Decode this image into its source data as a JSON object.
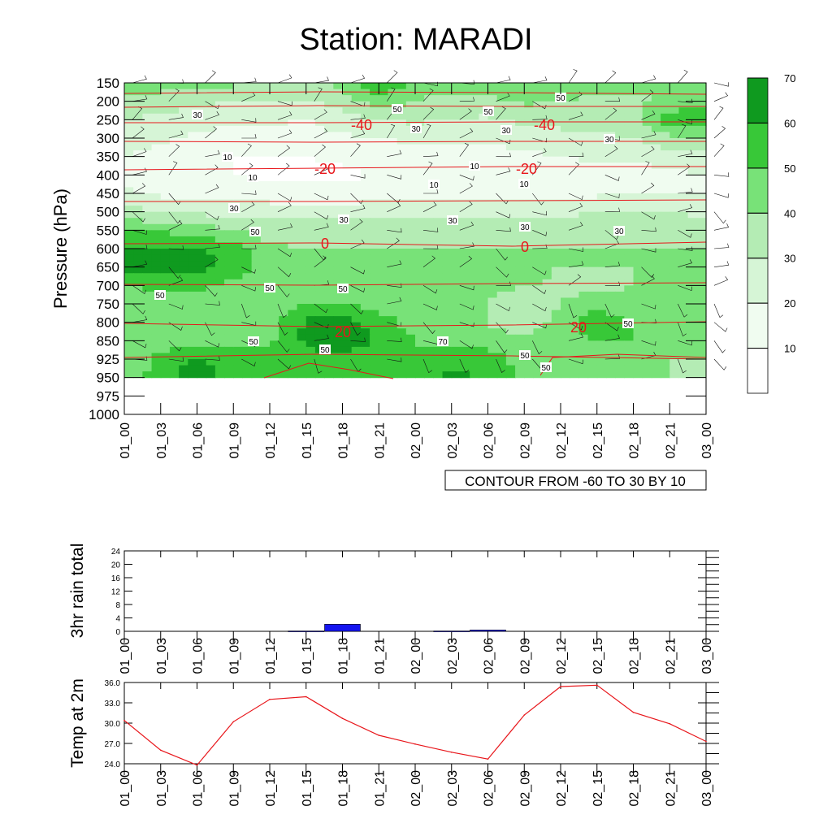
{
  "title": "Station: MARADI",
  "colors": {
    "levels": [
      "#ffffff",
      "#f0fcf0",
      "#d6f5d6",
      "#b4ecb4",
      "#78e278",
      "#38c838",
      "#0f9a1f"
    ],
    "contour_line": "#e8161b",
    "rain_bar": "#1515f0",
    "temp_line": "#e8161b"
  },
  "chart_data": [
    {
      "type": "heatmap",
      "name": "cross-section",
      "ylabel": "Pressure (hPa)",
      "pressure_levels": [
        150,
        200,
        250,
        300,
        350,
        400,
        450,
        500,
        550,
        600,
        650,
        700,
        750,
        800,
        850,
        925,
        950,
        975,
        1000
      ],
      "x_ticks": [
        "01_00",
        "01_03",
        "01_06",
        "01_09",
        "01_12",
        "01_15",
        "01_18",
        "01_21",
        "02_00",
        "02_03",
        "02_06",
        "02_09",
        "02_12",
        "02_15",
        "02_18",
        "02_21",
        "03_00"
      ],
      "color_bar": {
        "boundaries": [
          10,
          20,
          30,
          40,
          50,
          60,
          70
        ],
        "labels": [
          "10",
          "20",
          "30",
          "40",
          "50",
          "60",
          "70"
        ]
      },
      "shaded_field_rows": [
        {
          "p": 150,
          "v": [
            45,
            45,
            42,
            42,
            40,
            40,
            42,
            60,
            50,
            45,
            42,
            45,
            45,
            42,
            42,
            42,
            40
          ]
        },
        {
          "p": 200,
          "v": [
            38,
            35,
            32,
            30,
            28,
            28,
            35,
            45,
            40,
            35,
            38,
            42,
            40,
            38,
            38,
            42,
            45
          ]
        },
        {
          "p": 250,
          "v": [
            30,
            28,
            25,
            22,
            22,
            20,
            25,
            30,
            32,
            30,
            28,
            32,
            35,
            35,
            38,
            55,
            60
          ]
        },
        {
          "p": 300,
          "v": [
            25,
            22,
            18,
            15,
            15,
            15,
            18,
            20,
            22,
            22,
            22,
            25,
            25,
            28,
            30,
            38,
            40
          ]
        },
        {
          "p": 350,
          "v": [
            20,
            15,
            12,
            10,
            10,
            10,
            12,
            15,
            15,
            15,
            15,
            18,
            20,
            22,
            22,
            25,
            28
          ]
        },
        {
          "p": 400,
          "v": [
            18,
            12,
            10,
            10,
            8,
            8,
            8,
            10,
            10,
            12,
            12,
            12,
            15,
            15,
            15,
            18,
            20
          ]
        },
        {
          "p": 450,
          "v": [
            22,
            18,
            15,
            15,
            15,
            12,
            12,
            15,
            15,
            15,
            15,
            15,
            18,
            18,
            18,
            20,
            20
          ]
        },
        {
          "p": 500,
          "v": [
            35,
            30,
            28,
            25,
            25,
            25,
            25,
            28,
            28,
            28,
            28,
            28,
            28,
            30,
            30,
            30,
            28
          ]
        },
        {
          "p": 550,
          "v": [
            48,
            48,
            45,
            40,
            35,
            35,
            35,
            35,
            35,
            32,
            32,
            32,
            32,
            35,
            35,
            35,
            35
          ]
        },
        {
          "p": 600,
          "v": [
            62,
            62,
            62,
            55,
            42,
            40,
            40,
            40,
            40,
            40,
            40,
            40,
            40,
            40,
            40,
            40,
            40
          ]
        },
        {
          "p": 650,
          "v": [
            65,
            65,
            65,
            55,
            45,
            40,
            42,
            40,
            42,
            42,
            52,
            42,
            40,
            40,
            40,
            40,
            40
          ]
        },
        {
          "p": 700,
          "v": [
            50,
            52,
            52,
            48,
            45,
            45,
            45,
            45,
            42,
            42,
            42,
            42,
            38,
            38,
            40,
            40,
            40
          ]
        },
        {
          "p": 750,
          "v": [
            45,
            45,
            45,
            42,
            42,
            50,
            50,
            45,
            42,
            40,
            40,
            28,
            40,
            45,
            42,
            40,
            40
          ]
        },
        {
          "p": 800,
          "v": [
            42,
            42,
            45,
            45,
            45,
            62,
            65,
            55,
            45,
            42,
            40,
            32,
            45,
            58,
            50,
            42,
            40
          ]
        },
        {
          "p": 850,
          "v": [
            42,
            45,
            48,
            45,
            48,
            62,
            72,
            58,
            50,
            48,
            45,
            42,
            45,
            50,
            50,
            45,
            42
          ]
        },
        {
          "p": 925,
          "v": [
            45,
            52,
            60,
            55,
            52,
            55,
            55,
            50,
            50,
            55,
            55,
            45,
            42,
            42,
            42,
            40,
            40
          ]
        },
        {
          "p": 950,
          "v": [
            42,
            55,
            68,
            55,
            52,
            52,
            52,
            50,
            55,
            62,
            60,
            48,
            40,
            40,
            40,
            40,
            38
          ]
        }
      ],
      "isotherm_labels": [
        "-40",
        "-40",
        "-20",
        "-20",
        "0",
        "0",
        "20",
        "20"
      ],
      "speed_labels": [
        "30",
        "50",
        "50",
        "50",
        "30",
        "30",
        "30",
        "10",
        "10",
        "10",
        "10",
        "10",
        "30",
        "30",
        "30",
        "30",
        "30",
        "50",
        "50",
        "50",
        "50",
        "50",
        "70",
        "50",
        "50",
        "50",
        "50"
      ],
      "info_label": "CONTOUR FROM -60 TO 30 BY 10"
    },
    {
      "type": "bar",
      "name": "rain",
      "ylabel": "3hr rain total",
      "ylim": [
        0,
        24
      ],
      "y_ticks": [
        "0",
        "4",
        "8",
        "12",
        "16",
        "20",
        "24"
      ],
      "categories": [
        "01_00",
        "01_03",
        "01_06",
        "01_09",
        "01_12",
        "01_15",
        "01_18",
        "01_21",
        "02_00",
        "02_03",
        "02_06",
        "02_09",
        "02_12",
        "02_15",
        "02_18",
        "02_21",
        "03_00"
      ],
      "values": [
        0,
        0,
        0,
        0,
        0,
        0.1,
        2.1,
        0,
        0,
        0.1,
        0.4,
        0,
        0,
        0,
        0,
        0,
        0
      ]
    },
    {
      "type": "line",
      "name": "temperature",
      "ylabel": "Temp at 2m",
      "ylim": [
        24,
        36
      ],
      "y_ticks": [
        "24.0",
        "27.0",
        "30.0",
        "33.0",
        "36.0"
      ],
      "categories": [
        "01_00",
        "01_03",
        "01_06",
        "01_09",
        "01_12",
        "01_15",
        "01_18",
        "01_21",
        "02_00",
        "02_03",
        "02_06",
        "02_09",
        "02_12",
        "02_15",
        "02_18",
        "02_21",
        "03_00"
      ],
      "values": [
        30.4,
        26.0,
        23.8,
        30.2,
        33.5,
        33.9,
        30.7,
        28.2,
        26.9,
        25.7,
        24.7,
        31.2,
        35.4,
        35.6,
        31.6,
        29.9,
        27.3
      ]
    }
  ]
}
